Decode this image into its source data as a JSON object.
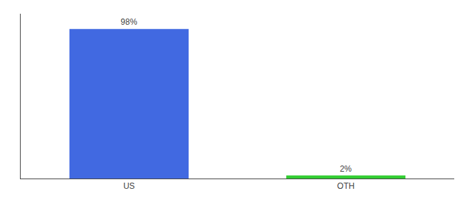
{
  "chart_data": {
    "type": "bar",
    "categories": [
      "US",
      "OTH"
    ],
    "values": [
      98,
      2
    ],
    "value_labels": [
      "98%",
      "2%"
    ],
    "colors": [
      "#4169e1",
      "#32cd32"
    ],
    "ylim": [
      0,
      108
    ],
    "yticks": [],
    "grid": false,
    "tick_labels": "x",
    "data_labels": true
  }
}
